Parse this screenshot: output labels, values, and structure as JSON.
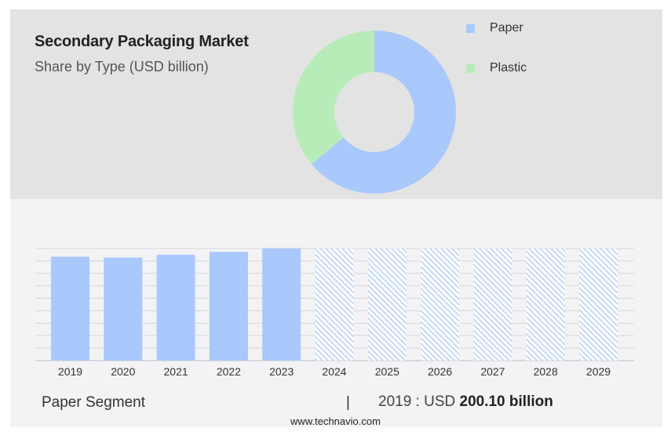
{
  "header": {
    "title": "Secondary Packaging Market",
    "subtitle": "Share by Type (USD billion)"
  },
  "chart_data": [
    {
      "type": "pie",
      "variant": "donut",
      "slices": [
        {
          "label": "Paper",
          "value": 64,
          "color": "#a9c8fc"
        },
        {
          "label": "Plastic",
          "value": 36,
          "color": "#b7ecb8"
        }
      ],
      "legend_position": "right"
    },
    {
      "type": "bar",
      "categories": [
        "2019",
        "2020",
        "2021",
        "2022",
        "2023",
        "2024",
        "2025",
        "2026",
        "2027",
        "2028",
        "2029"
      ],
      "values": [
        200.1,
        198.5,
        204.0,
        209.5,
        216.0,
        null,
        null,
        null,
        null,
        null,
        null
      ],
      "forecast_categories": [
        "2024",
        "2025",
        "2026",
        "2027",
        "2028",
        "2029"
      ],
      "forecast_style": "hatched",
      "bar_color": "#a9c8fc",
      "ylim": [
        0,
        216
      ],
      "grid": true,
      "y_axis_labels": false
    }
  ],
  "footer": {
    "segment": "Paper Segment",
    "divider": "|",
    "stat_prefix": "2019 : USD",
    "stat_value": "200.10 billion",
    "source": "www.technavio.com"
  }
}
